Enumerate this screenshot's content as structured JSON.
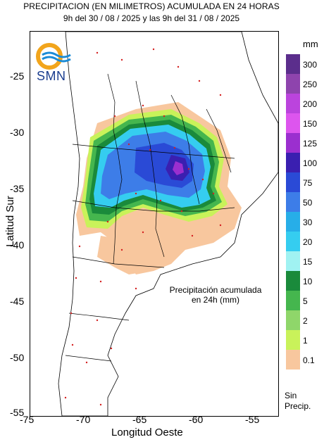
{
  "title": {
    "line1": "PRECIPITACION (EN MILIMETROS) ACUMULADA EN 24 HORAS",
    "line2": "9h del 30 / 08 / 2025  y las 9h del 31 / 08 / 2025"
  },
  "axes": {
    "ylabel": "Latitud Sur",
    "xlabel": "Longitud Oeste",
    "xticks": [
      "-75",
      "-70",
      "-65",
      "-60",
      "-55"
    ],
    "yticks": [
      "-25",
      "-30",
      "-35",
      "-40",
      "-45",
      "-50",
      "-55"
    ]
  },
  "legend": {
    "unit": "mm",
    "labels": [
      "300",
      "250",
      "200",
      "150",
      "125",
      "100",
      "75",
      "50",
      "30",
      "20",
      "15",
      "10",
      "5",
      "2",
      "1",
      "0.1"
    ],
    "colors": [
      "#5b2e8c",
      "#8e44ad",
      "#bb44dd",
      "#dd55ee",
      "#9b2fcf",
      "#3a1fb0",
      "#2a4ad6",
      "#3d7de8",
      "#27aee8",
      "#35cdf0",
      "#a0f2f2",
      "#1a8a3b",
      "#45b64e",
      "#8fd66a",
      "#c9f25a",
      "#f8c79e"
    ],
    "no_precip": "Sin Precip."
  },
  "annotation": {
    "line1": "Precipitación acumulada",
    "line2": "en 24h (mm)"
  },
  "logo": {
    "text": "SMN"
  }
}
